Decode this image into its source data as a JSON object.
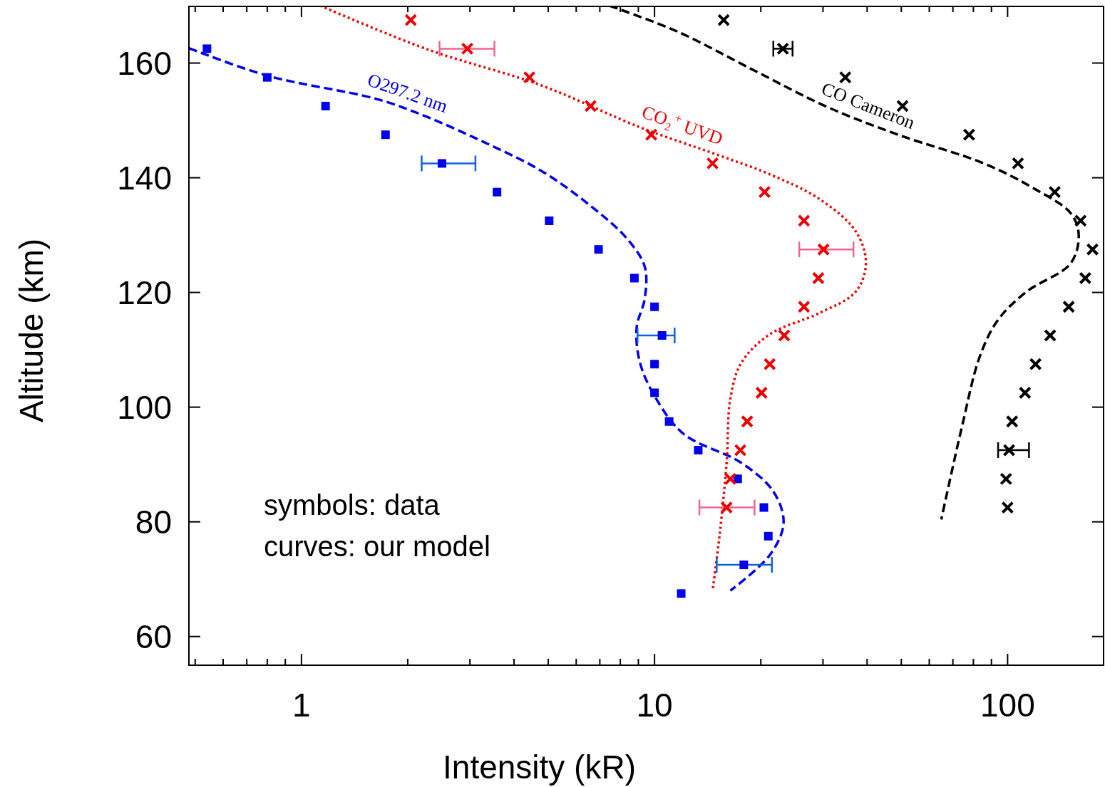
{
  "chart_data": {
    "type": "scatter",
    "xlabel": "Intensity (kR)",
    "ylabel": "Altitude (km)",
    "log": "x",
    "xlim": [
      0.48,
      187
    ],
    "ylim": [
      55,
      170
    ],
    "xticks": [
      {
        "value": 0.5,
        "label": null
      },
      {
        "value": 0.6,
        "label": null
      },
      {
        "value": 0.7,
        "label": null
      },
      {
        "value": 0.8,
        "label": null
      },
      {
        "value": 0.9,
        "label": null
      },
      1,
      {
        "value": 2,
        "label": null
      },
      {
        "value": 3,
        "label": null
      },
      {
        "value": 4,
        "label": null
      },
      {
        "value": 5,
        "label": null
      },
      {
        "value": 6,
        "label": null
      },
      {
        "value": 7,
        "label": null
      },
      {
        "value": 8,
        "label": null
      },
      {
        "value": 9,
        "label": null
      },
      10,
      {
        "value": 20,
        "label": null
      },
      {
        "value": 30,
        "label": null
      },
      {
        "value": 40,
        "label": null
      },
      {
        "value": 50,
        "label": null
      },
      {
        "value": 60,
        "label": null
      },
      {
        "value": 70,
        "label": null
      },
      {
        "value": 80,
        "label": null
      },
      {
        "value": 90,
        "label": null
      },
      100
    ],
    "yticks": [
      60,
      80,
      100,
      120,
      140,
      160
    ],
    "grid": false,
    "annotations": [
      "symbols: data",
      "curves: our model"
    ],
    "series": [
      {
        "color": "#0000ee",
        "marker": "square",
        "x": [
          0.54,
          0.8,
          1.17,
          1.73,
          2.5,
          3.58,
          5.03,
          6.94,
          8.77,
          10.0,
          10.5,
          10.0,
          10.0,
          11.0,
          13.3,
          17.2,
          20.4,
          21.0,
          17.9,
          11.9
        ],
        "values": [
          162.5,
          157.5,
          152.5,
          147.5,
          142.5,
          137.5,
          132.5,
          127.5,
          122.5,
          117.5,
          112.5,
          107.5,
          102.5,
          97.5,
          92.5,
          87.5,
          82.5,
          77.5,
          72.5,
          67.5
        ],
        "xerrors": [
          null,
          null,
          null,
          null,
          [
            2.19,
            3.11
          ],
          null,
          null,
          null,
          null,
          null,
          [
            8.95,
            11.4
          ],
          null,
          null,
          null,
          null,
          null,
          null,
          null,
          [
            15.0,
            21.5
          ],
          null
        ]
      },
      {
        "color": "#ee0000",
        "marker": "cross",
        "x": [
          2.04,
          2.95,
          4.42,
          6.59,
          9.79,
          14.6,
          20.5,
          26.5,
          30.1,
          29.1,
          26.5,
          23.3,
          21.2,
          20.1,
          18.3,
          17.5,
          16.4,
          16.0
        ],
        "values": [
          167.5,
          162.5,
          157.5,
          152.5,
          147.5,
          142.5,
          137.5,
          132.5,
          127.5,
          122.5,
          117.5,
          112.5,
          107.5,
          102.5,
          97.5,
          92.5,
          87.5,
          82.5
        ],
        "xerrors": [
          null,
          [
            2.46,
            3.52
          ],
          null,
          null,
          null,
          null,
          null,
          null,
          [
            25.7,
            36.6
          ],
          null,
          null,
          null,
          null,
          null,
          null,
          null,
          null,
          [
            13.4,
            19.2
          ]
        ]
      },
      {
        "color": "#000000",
        "marker": "cross",
        "x": [
          15.7,
          23.1,
          34.7,
          50.4,
          77.8,
          107,
          136,
          161,
          174,
          166,
          149,
          132,
          120,
          112,
          103,
          101,
          99,
          100
        ],
        "values": [
          167.5,
          162.5,
          157.5,
          152.5,
          147.5,
          142.5,
          137.5,
          132.5,
          127.5,
          122.5,
          117.5,
          112.5,
          107.5,
          102.5,
          97.5,
          92.5,
          87.5,
          82.5
        ],
        "xerrors": [
          null,
          [
            21.7,
            24.6
          ],
          null,
          null,
          null,
          null,
          null,
          null,
          null,
          null,
          null,
          null,
          null,
          null,
          null,
          [
            94,
            115
          ],
          null,
          null
        ]
      },
      {
        "type": "line",
        "name": "O297.2 nm",
        "color": "#0000ee",
        "line_style": "dashed",
        "x": [
          0.48,
          0.8,
          1.64,
          2.27,
          3.29,
          4.78,
          6.62,
          8.35,
          9.38,
          9.38,
          8.9,
          9.1,
          10.1,
          12.1,
          17.6,
          21.7,
          23.2,
          21.2,
          16.4
        ],
        "values": [
          162.6,
          157.8,
          153.7,
          150.6,
          146.2,
          141.2,
          135.0,
          129.4,
          124.5,
          118.9,
          113.9,
          107.7,
          101.5,
          95.3,
          90.3,
          85.3,
          79.8,
          74.2,
          68.0
        ]
      },
      {
        "type": "line",
        "name": "CO₂$^{+}$ UVD",
        "color": "#ee0000",
        "line_style": "dotted",
        "x": [
          1.13,
          2.27,
          4.78,
          9.18,
          14.6,
          21.2,
          29.3,
          37.1,
          39.7,
          37.1,
          29.3,
          21.2,
          17.6,
          16.4,
          16.0,
          15.3,
          14.6
        ],
        "values": [
          170,
          162.4,
          156.1,
          148.7,
          144.3,
          140.6,
          136.3,
          130.7,
          125.1,
          120.1,
          116.4,
          112.7,
          107.7,
          101.5,
          90.3,
          77.9,
          68.0
        ]
      },
      {
        "type": "line",
        "name": "CO Cameron",
        "color": "#000000",
        "line_style": "dashed",
        "x": [
          7.45,
          11.6,
          19.3,
          30.7,
          49.0,
          85.6,
          119,
          151,
          159,
          151,
          113,
          93.9,
          83.5,
          74.2,
          64.9
        ],
        "values": [
          170,
          165.5,
          158.6,
          152.4,
          147.5,
          142.5,
          138.1,
          133.8,
          130.1,
          125.1,
          120.1,
          115.2,
          108.9,
          96.5,
          80.4
        ]
      }
    ]
  }
}
